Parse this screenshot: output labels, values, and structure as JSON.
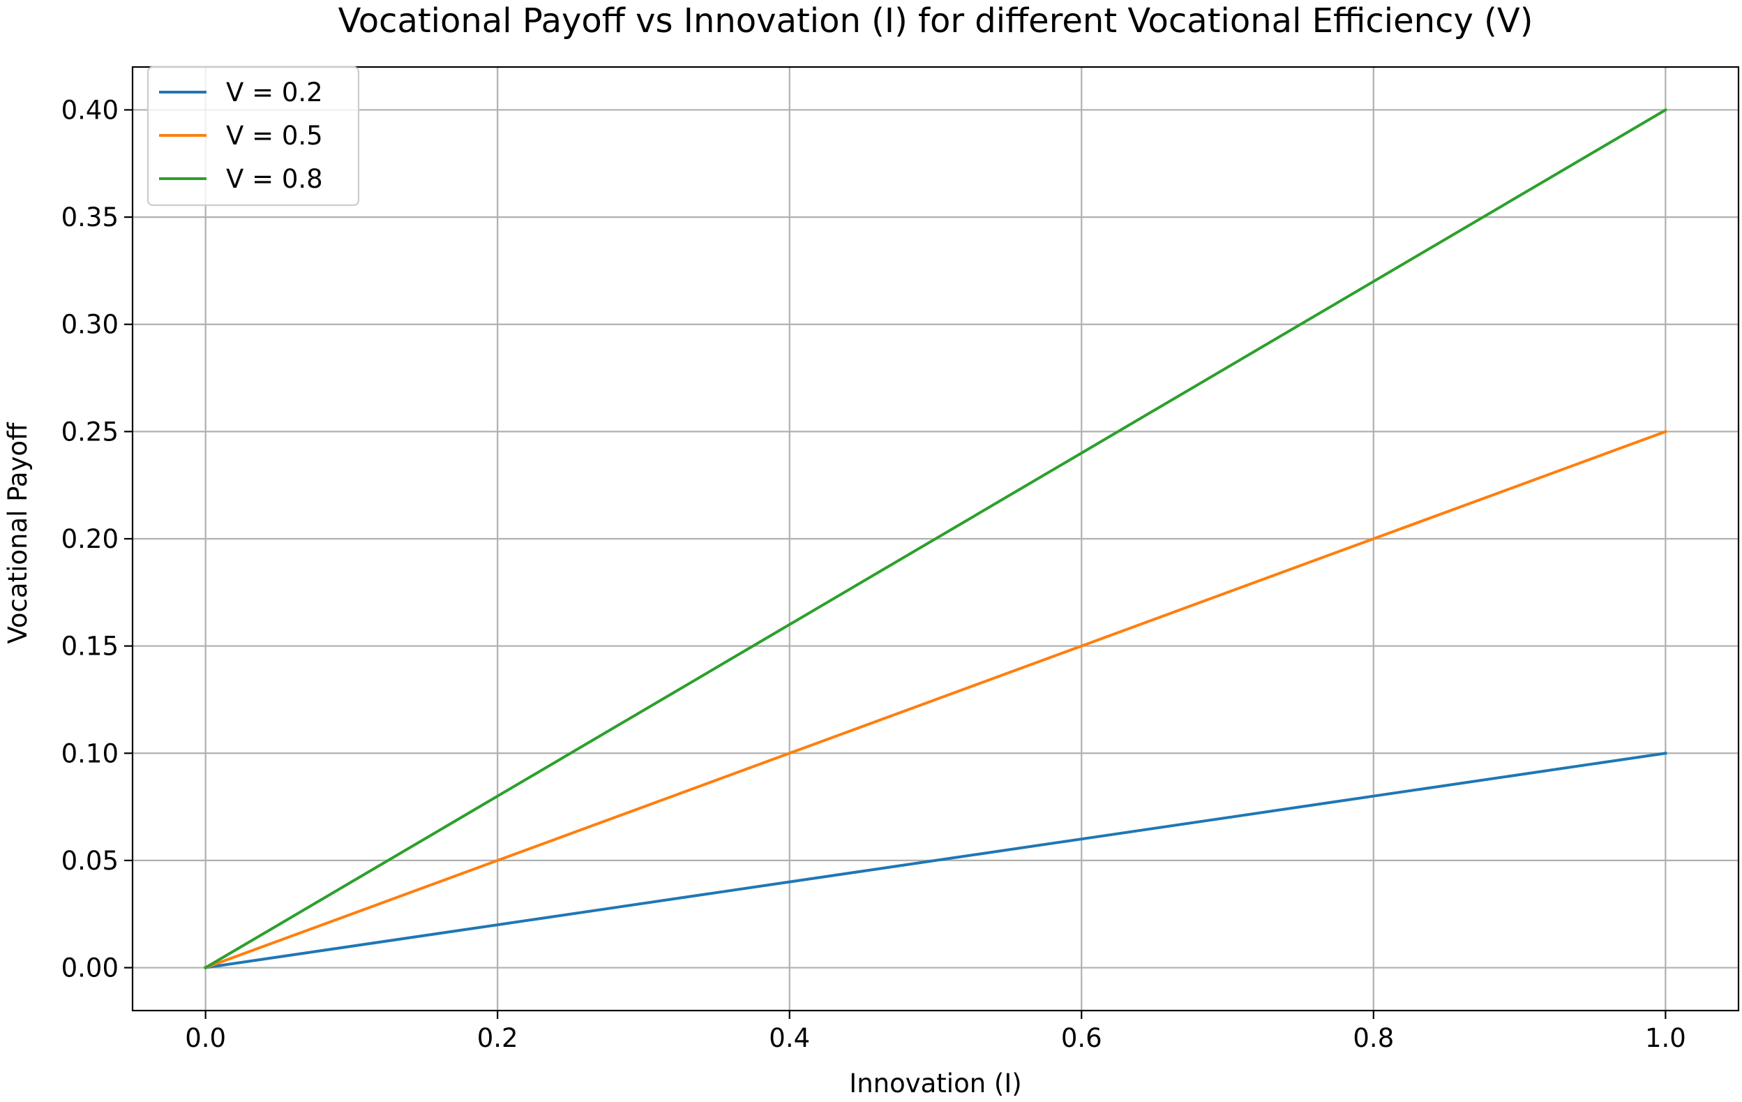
{
  "chart_data": {
    "type": "line",
    "title": "Vocational Payoff vs Innovation (I) for different Vocational Efficiency (V)",
    "xlabel": "Innovation (I)",
    "ylabel": "Vocational Payoff",
    "xlim": [
      -0.05,
      1.05
    ],
    "ylim": [
      -0.02,
      0.42
    ],
    "xticks": [
      0.0,
      0.2,
      0.4,
      0.6,
      0.8,
      1.0
    ],
    "xtick_labels": [
      "0.0",
      "0.2",
      "0.4",
      "0.6",
      "0.8",
      "1.0"
    ],
    "yticks": [
      0.0,
      0.05,
      0.1,
      0.15,
      0.2,
      0.25,
      0.3,
      0.35,
      0.4
    ],
    "ytick_labels": [
      "0.00",
      "0.05",
      "0.10",
      "0.15",
      "0.20",
      "0.25",
      "0.30",
      "0.35",
      "0.40"
    ],
    "grid": true,
    "legend_position": "top-left",
    "series": [
      {
        "name": "V = 0.2",
        "color": "#1f77b4",
        "x": [
          0.0,
          0.2,
          0.4,
          0.6,
          0.8,
          1.0
        ],
        "y": [
          0.0,
          0.02,
          0.04,
          0.06,
          0.08,
          0.1
        ]
      },
      {
        "name": "V = 0.5",
        "color": "#ff7f0e",
        "x": [
          0.0,
          0.2,
          0.4,
          0.6,
          0.8,
          1.0
        ],
        "y": [
          0.0,
          0.05,
          0.1,
          0.15,
          0.2,
          0.25
        ]
      },
      {
        "name": "V = 0.8",
        "color": "#2ca02c",
        "x": [
          0.0,
          0.2,
          0.4,
          0.6,
          0.8,
          1.0
        ],
        "y": [
          0.0,
          0.08,
          0.16,
          0.24,
          0.32,
          0.4
        ]
      }
    ]
  }
}
